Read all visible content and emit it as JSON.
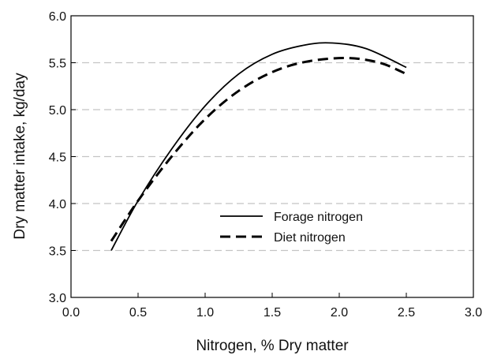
{
  "chart_data": {
    "type": "line",
    "xlabel": "Nitrogen, % Dry matter",
    "ylabel": "Dry matter intake, kg/day",
    "xlim": [
      0.0,
      3.0
    ],
    "ylim": [
      3.0,
      6.0
    ],
    "x_ticks": [
      "0.0",
      "0.5",
      "1.0",
      "1.5",
      "2.0",
      "2.5",
      "3.0"
    ],
    "y_ticks": [
      "3.0",
      "3.5",
      "4.0",
      "4.5",
      "5.0",
      "5.5",
      "6.0"
    ],
    "grid": "horizontal dashed",
    "legend_position": "lower-right",
    "series": [
      {
        "name": "Forage nitrogen",
        "style": "solid",
        "x": [
          0.3,
          0.5,
          0.75,
          1.0,
          1.25,
          1.5,
          1.75,
          1.95,
          2.2,
          2.5
        ],
        "y": [
          3.5,
          4.03,
          4.58,
          5.04,
          5.38,
          5.59,
          5.69,
          5.71,
          5.65,
          5.45
        ]
      },
      {
        "name": "Diet nitrogen",
        "style": "dashed",
        "x": [
          0.3,
          0.5,
          0.75,
          1.0,
          1.25,
          1.5,
          1.75,
          2.05,
          2.3,
          2.5
        ],
        "y": [
          3.6,
          4.03,
          4.5,
          4.9,
          5.2,
          5.4,
          5.51,
          5.55,
          5.5,
          5.38
        ]
      }
    ]
  }
}
